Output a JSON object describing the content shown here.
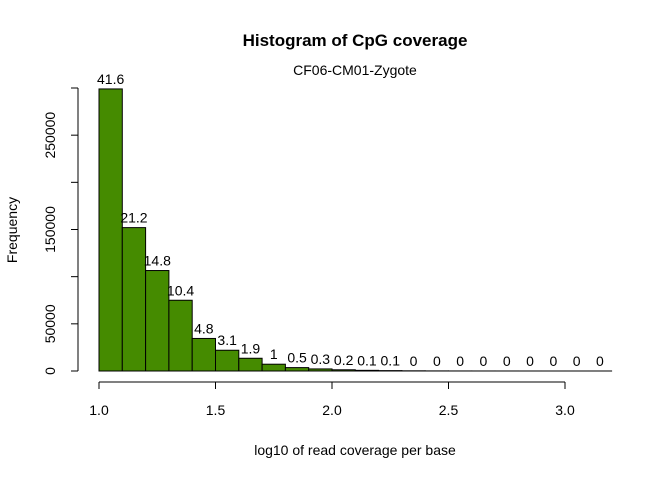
{
  "chart_data": {
    "type": "bar",
    "title": "Histogram of CpG coverage",
    "subtitle": "CF06-CM01-Zygote",
    "xlabel": "log10 of read coverage per base",
    "ylabel": "Frequency",
    "bin_edges": [
      1.0,
      1.1,
      1.2,
      1.3,
      1.4,
      1.5,
      1.6,
      1.7,
      1.8,
      1.9,
      2.0,
      2.1,
      2.2,
      2.3,
      2.4,
      2.5,
      2.6,
      2.7,
      2.8,
      2.9,
      3.0,
      3.1,
      3.2
    ],
    "values": [
      299000,
      152000,
      106500,
      75000,
      34500,
      22000,
      13500,
      7200,
      3600,
      2200,
      1300,
      700,
      400,
      200,
      100,
      50,
      30,
      20,
      10,
      5,
      5,
      5
    ],
    "bar_labels": [
      "41.6",
      "21.2",
      "14.8",
      "10.4",
      "4.8",
      "3.1",
      "1.9",
      "1",
      "0.5",
      "0.3",
      "0.2",
      "0.1",
      "0.1",
      "0",
      "0",
      "0",
      "0",
      "0",
      "0",
      "0",
      "0",
      "0"
    ],
    "xlim": [
      1.0,
      3.2
    ],
    "ylim": [
      0,
      300000
    ],
    "x_ticks": [
      1.0,
      1.5,
      2.0,
      2.5,
      3.0
    ],
    "x_tick_labels": [
      "1.0",
      "1.5",
      "2.0",
      "2.5",
      "3.0"
    ],
    "y_ticks": [
      0,
      50000,
      150000,
      250000
    ],
    "y_tick_labels": [
      "0",
      "50000",
      "150000",
      "250000"
    ],
    "y_minor_ticks": [
      0,
      50000,
      100000,
      150000,
      200000,
      250000,
      300000
    ],
    "bar_color": "#458B00",
    "grid": false
  }
}
